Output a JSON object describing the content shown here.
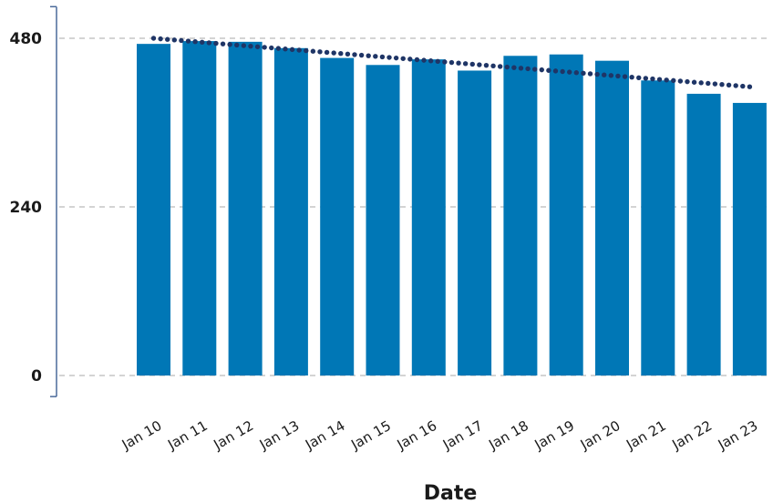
{
  "chart_data": {
    "type": "bar",
    "title": "",
    "xlabel": "Date",
    "ylabel": "",
    "ylim": [
      -30,
      525
    ],
    "yticks": [
      0,
      240,
      480
    ],
    "ytick_labels": [
      "0",
      "240",
      "480"
    ],
    "grid": true,
    "categories": [
      "Jan 10",
      "Jan 11",
      "Jan 12",
      "Jan 13",
      "Jan 14",
      "Jan 15",
      "Jan 16",
      "Jan 17",
      "Jan 18",
      "Jan 19",
      "Jan 20",
      "Jan 21",
      "Jan 22",
      "Jan 23"
    ],
    "values": [
      472,
      476,
      475,
      466,
      452,
      442,
      450,
      434,
      455,
      457,
      448,
      420,
      401,
      388
    ],
    "trendline": {
      "style": "dotted",
      "start": 480,
      "end": 411
    },
    "colors": {
      "bar": "#0077b6",
      "trendline": "#1f3566",
      "grid": "#bbbbbb",
      "axis": "#4a6a9a"
    }
  }
}
